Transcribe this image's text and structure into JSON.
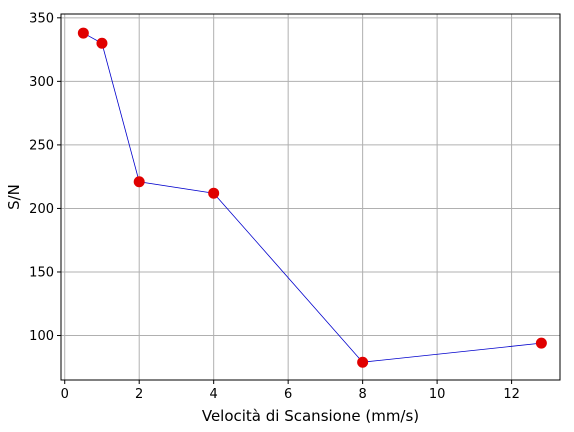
{
  "chart_data": {
    "type": "line",
    "title": "",
    "xlabel": "Velocità di Scansione (mm/s)",
    "ylabel": "S/N",
    "xlim": [
      -0.1,
      13.3
    ],
    "ylim": [
      65,
      353
    ],
    "xticks": [
      0,
      2,
      4,
      6,
      8,
      10,
      12
    ],
    "yticks": [
      100,
      150,
      200,
      250,
      300,
      350
    ],
    "grid": true,
    "legend": "none",
    "series": [
      {
        "x": [
          0.5,
          1,
          2,
          4,
          8,
          12.8
        ],
        "y": [
          338,
          330,
          221,
          212,
          79,
          94
        ],
        "line_color": "#0000cc",
        "marker_color": "#e00000"
      }
    ]
  }
}
